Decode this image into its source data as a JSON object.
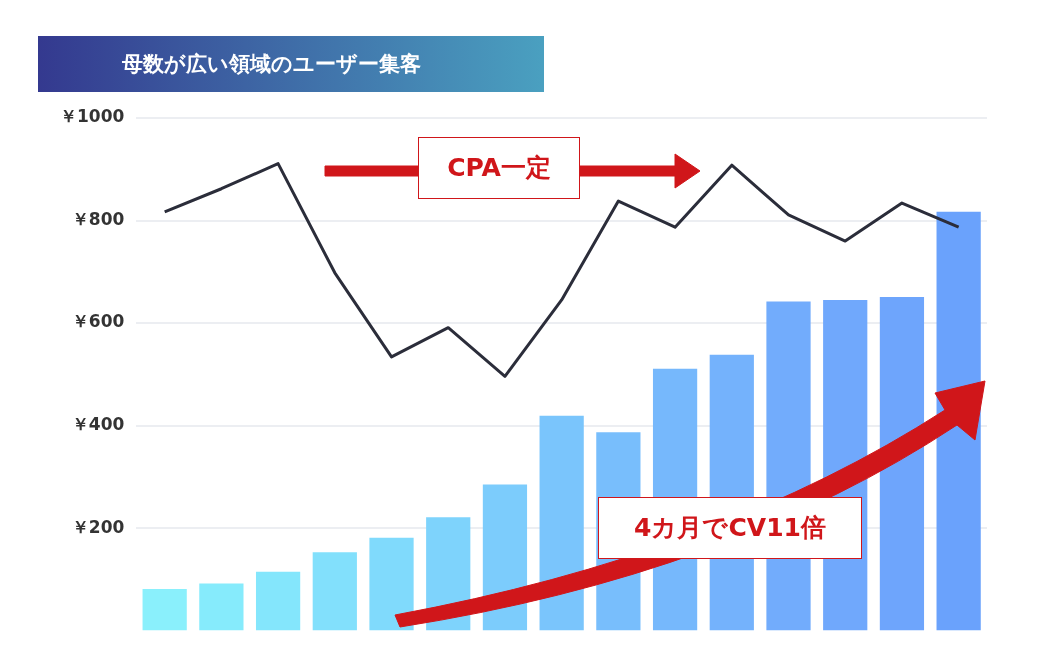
{
  "chart_data": {
    "type": "bar",
    "title": "母数が広い領域のユーザー集客",
    "categories": [
      null,
      null,
      null,
      null,
      null,
      null,
      null,
      null,
      null,
      null,
      null,
      null,
      null,
      null,
      null
    ],
    "series": [
      {
        "colors": [
          "#8af0fc",
          "#86ebfc",
          "#84e6fc",
          "#82e0fc",
          "#80dafc",
          "#7ed3fc",
          "#7cccfc",
          "#7ac5fc",
          "#78befc",
          "#76b8fc",
          "#74b2fc",
          "#72acfc",
          "#70a8fc",
          "#6ea5fc",
          "#6aa2fc"
        ],
        "values": [
          81,
          92,
          115,
          153,
          181,
          221,
          285,
          419,
          387,
          511,
          538,
          642,
          645,
          651,
          817
        ]
      },
      {
        "type": "line",
        "color": "#2b2d3a",
        "values": [
          817,
          862,
          911,
          698,
          534,
          591,
          496,
          645,
          838,
          787,
          908,
          811,
          760,
          834,
          787
        ]
      }
    ],
    "ylim": [
      0,
      1000
    ],
    "yticks": [
      {
        "value": 200,
        "label": "￥200"
      },
      {
        "value": 400,
        "label": "￥400"
      },
      {
        "value": 600,
        "label": "￥600"
      },
      {
        "value": 800,
        "label": "￥800"
      },
      {
        "value": 1000,
        "label": "￥1000"
      }
    ],
    "grid": "y",
    "legend": false,
    "marker": "none",
    "line_style": "solid",
    "annotations": [
      "CPA一定",
      "4カ月でCV11倍"
    ]
  }
}
